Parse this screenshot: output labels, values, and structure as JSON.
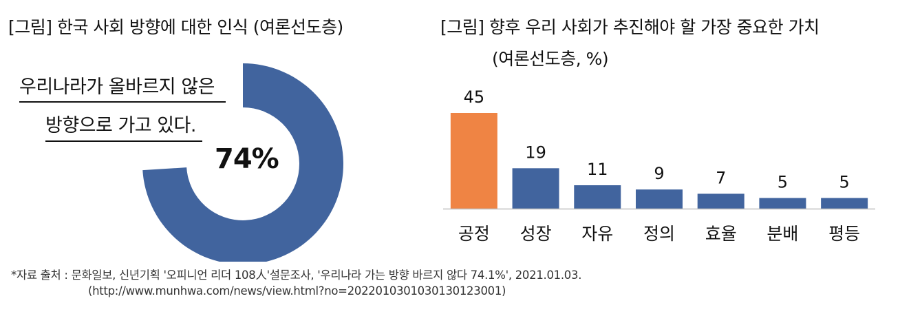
{
  "left_panel": {
    "title": "[그림] 한국 사회 방향에 대한 인식 (여론선도층)",
    "callout_line1": "우리나라가 올바르지 않은",
    "callout_line2": "방향으로 가고 있다."
  },
  "right_panel": {
    "title_line1": "[그림] 향후 우리 사회가 추진해야 할 가장 중요한 가치",
    "title_line2": "(여론선도층, %)"
  },
  "footer": {
    "source": "*자료 출처 : 문화일보, 신년기획 '오피니언 리더 108人'설문조사, '우리나라 가는 방향 바르지 않다 74.1%', 2021.01.03.",
    "url": "(http://www.munhwa.com/news/view.html?no=2022010301030130123001)"
  },
  "colors": {
    "primary": "#41649e",
    "highlight": "#ef8444",
    "axis": "#bfbfbf"
  },
  "chart_data": [
    {
      "type": "pie",
      "subtype": "donut",
      "title": "[그림] 한국 사회 방향에 대한 인식 (여론선도층)",
      "center_label": "74%",
      "slices": [
        {
          "label": "우리나라가 올바르지 않은 방향으로 가고 있다.",
          "value": 74
        },
        {
          "label": "",
          "value": 26
        }
      ]
    },
    {
      "type": "bar",
      "title": "[그림] 향후 우리 사회가 추진해야 할 가장 중요한 가치 (여론선도층, %)",
      "categories": [
        "공정",
        "성장",
        "자유",
        "정의",
        "효율",
        "분배",
        "평등"
      ],
      "values": [
        45,
        19,
        11,
        9,
        7,
        5,
        5
      ],
      "highlight_index": 0,
      "ylim": [
        0,
        45
      ],
      "xlabel": "",
      "ylabel": "",
      "grid": false
    }
  ]
}
